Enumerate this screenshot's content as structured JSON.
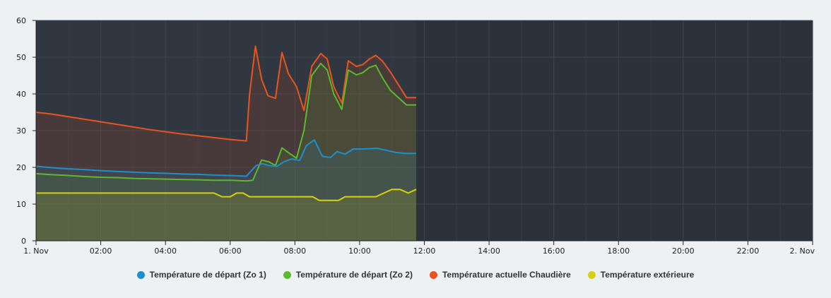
{
  "chart_data": {
    "type": "area",
    "title": "",
    "xlabel": "",
    "ylabel": "",
    "x_range_hours": [
      0,
      24
    ],
    "x_ticks": [
      {
        "h": 0,
        "label": "1. Nov"
      },
      {
        "h": 2,
        "label": "02:00"
      },
      {
        "h": 4,
        "label": "04:00"
      },
      {
        "h": 6,
        "label": "06:00"
      },
      {
        "h": 8,
        "label": "08:00"
      },
      {
        "h": 10,
        "label": "10:00"
      },
      {
        "h": 12,
        "label": "12:00"
      },
      {
        "h": 14,
        "label": "14:00"
      },
      {
        "h": 16,
        "label": "16:00"
      },
      {
        "h": 18,
        "label": "18:00"
      },
      {
        "h": 20,
        "label": "20:00"
      },
      {
        "h": 22,
        "label": "22:00"
      },
      {
        "h": 24,
        "label": "2. Nov"
      }
    ],
    "y_ticks": [
      0,
      10,
      20,
      30,
      40,
      50,
      60
    ],
    "ylim": [
      0,
      60
    ],
    "grid": true,
    "legend_position": "bottom-center",
    "series": [
      {
        "name": "Température actuelle Chaudière",
        "color": "#e8541e",
        "x": [
          0,
          0.5,
          1,
          1.5,
          2,
          2.5,
          3,
          3.5,
          4,
          4.5,
          5,
          5.5,
          6,
          6.5,
          6.6,
          6.78,
          6.97,
          7.17,
          7.4,
          7.6,
          7.8,
          8.05,
          8.28,
          8.52,
          8.8,
          9.0,
          9.2,
          9.45,
          9.65,
          9.9,
          10.1,
          10.3,
          10.5,
          10.7,
          10.95,
          11.2,
          11.45,
          11.75
        ],
        "y": [
          35,
          34.5,
          33.8,
          33.1,
          32.4,
          31.7,
          31.0,
          30.3,
          29.7,
          29.1,
          28.6,
          28.1,
          27.6,
          27.2,
          40,
          53,
          44,
          39.5,
          38.8,
          51.3,
          45.5,
          42,
          35.5,
          47.5,
          51,
          49.5,
          42,
          37.5,
          49,
          47.5,
          48,
          49.5,
          50.5,
          49,
          46,
          42.5,
          39,
          39
        ]
      },
      {
        "name": "Température de départ (Zo 2)",
        "color": "#5cb82e",
        "x": [
          0,
          0.5,
          1,
          1.5,
          2,
          2.5,
          3,
          3.5,
          4,
          4.5,
          5,
          5.5,
          6,
          6.5,
          6.7,
          6.97,
          7.2,
          7.4,
          7.6,
          7.8,
          8.05,
          8.28,
          8.52,
          8.8,
          9.0,
          9.2,
          9.45,
          9.65,
          9.9,
          10.1,
          10.3,
          10.5,
          10.7,
          10.95,
          11.2,
          11.45,
          11.75
        ],
        "y": [
          18.3,
          18.0,
          17.8,
          17.5,
          17.3,
          17.2,
          17.0,
          16.9,
          16.8,
          16.7,
          16.6,
          16.5,
          16.5,
          16.3,
          16.5,
          22,
          21.5,
          20.5,
          25.3,
          24,
          22.5,
          30,
          45,
          48.3,
          46.5,
          40,
          35.8,
          46.5,
          45.2,
          45.8,
          47.2,
          47.8,
          44.5,
          41,
          39,
          37,
          37
        ]
      },
      {
        "name": "Température de départ (Zo 1)",
        "color": "#1c8fcc",
        "x": [
          0,
          0.5,
          1,
          1.5,
          2,
          2.5,
          3,
          3.5,
          4,
          4.5,
          5,
          5.5,
          6,
          6.5,
          6.8,
          7.0,
          7.2,
          7.45,
          7.65,
          7.9,
          8.15,
          8.35,
          8.6,
          8.85,
          9.1,
          9.3,
          9.55,
          9.8,
          10.05,
          10.3,
          10.55,
          10.8,
          11.1,
          11.4,
          11.75
        ],
        "y": [
          20.3,
          19.9,
          19.6,
          19.4,
          19.1,
          18.9,
          18.7,
          18.5,
          18.4,
          18.2,
          18.1,
          17.9,
          17.8,
          17.6,
          20.5,
          21,
          20.5,
          20.3,
          21.5,
          22.3,
          21.9,
          25.9,
          27.5,
          23.0,
          22.7,
          24.3,
          23.6,
          25.0,
          25.0,
          25.1,
          25.2,
          24.7,
          24.1,
          23.8,
          23.8
        ]
      },
      {
        "name": "Température extérieure",
        "color": "#d7d20f",
        "x": [
          0,
          1,
          2,
          3,
          4,
          5,
          5.5,
          5.75,
          6.0,
          6.2,
          6.4,
          6.6,
          6.85,
          7.2,
          7.6,
          8.0,
          8.3,
          8.55,
          8.75,
          9.1,
          9.35,
          9.55,
          9.9,
          10.2,
          10.5,
          10.75,
          11.0,
          11.25,
          11.5,
          11.75
        ],
        "y": [
          13,
          13,
          13,
          13,
          13,
          13,
          13,
          12,
          12,
          13,
          13,
          12,
          12,
          12,
          12,
          12,
          12,
          12,
          11,
          11,
          11,
          12,
          12,
          12,
          12,
          13,
          14,
          14,
          13,
          14
        ]
      }
    ],
    "legend": [
      {
        "label": "Température de départ (Zo 1)",
        "color": "#1c8fcc"
      },
      {
        "label": "Température de départ (Zo 2)",
        "color": "#5cb82e"
      },
      {
        "label": "Température actuelle Chaudière",
        "color": "#e8541e"
      },
      {
        "label": "Température extérieure",
        "color": "#d7d20f"
      }
    ]
  }
}
